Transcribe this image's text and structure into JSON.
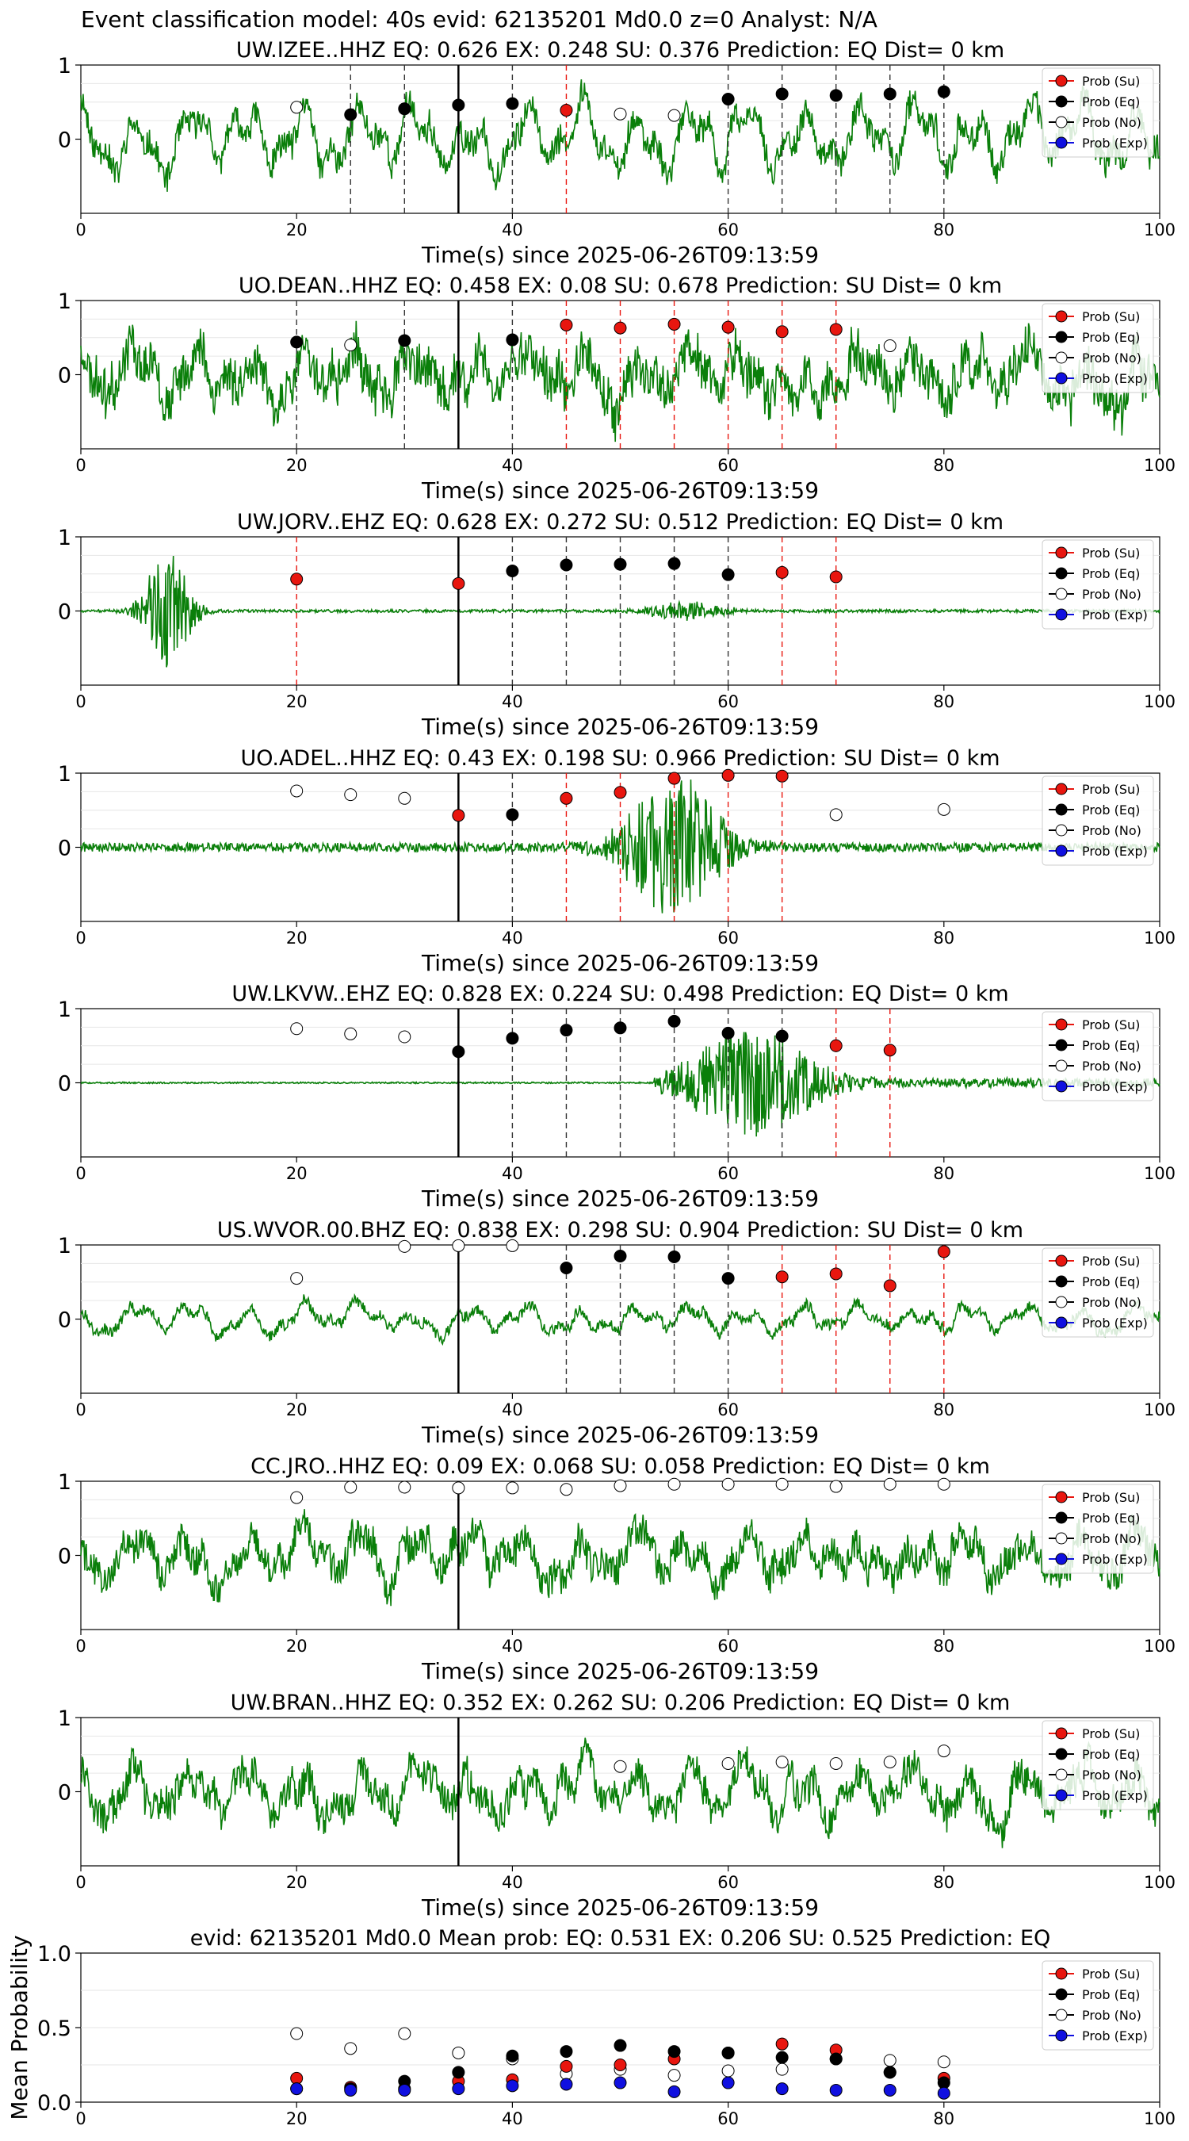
{
  "figure_title": "Event classification model: 40s evid: 62135201 Md0.0 z=0 Analyst: N/A",
  "legend_labels": [
    "Prob (Su)",
    "Prob (Eq)",
    "Prob (No)",
    "Prob (Exp)"
  ],
  "colors": {
    "su": "#e8160f",
    "eq": "#000000",
    "no": "#ffffff",
    "exp": "#1010e0",
    "trace": "#0a7f0a",
    "su_line": "#e8160f",
    "eq_line": "#333333"
  },
  "chart_data": [
    {
      "type": "line",
      "title": "UW.IZEE..HHZ   EQ: 0.626  EX: 0.248  SU: 0.376   Prediction: EQ    Dist= 0 km",
      "xlabel": "Time(s) since 2025-06-26T09:13:59",
      "xlim": [
        0,
        100
      ],
      "xticks": [
        0,
        20,
        40,
        60,
        80,
        100
      ],
      "yticks": [
        0,
        1
      ],
      "trace": {
        "seed": 11,
        "style": "wave",
        "amp": 0.55,
        "noise": 0.18
      },
      "pick_time": 35,
      "dashed_lines": [
        {
          "x": 25,
          "cls": "eq"
        },
        {
          "x": 30,
          "cls": "eq"
        },
        {
          "x": 40,
          "cls": "eq"
        },
        {
          "x": 45,
          "cls": "su"
        },
        {
          "x": 60,
          "cls": "eq"
        },
        {
          "x": 65,
          "cls": "eq"
        },
        {
          "x": 70,
          "cls": "eq"
        },
        {
          "x": 75,
          "cls": "eq"
        },
        {
          "x": 80,
          "cls": "eq"
        }
      ],
      "points": [
        {
          "x": 20,
          "y": 0.43,
          "cls": "no"
        },
        {
          "x": 25,
          "y": 0.33,
          "cls": "eq"
        },
        {
          "x": 30,
          "y": 0.41,
          "cls": "eq"
        },
        {
          "x": 35,
          "y": 0.46,
          "cls": "eq"
        },
        {
          "x": 40,
          "y": 0.48,
          "cls": "eq"
        },
        {
          "x": 45,
          "y": 0.39,
          "cls": "su"
        },
        {
          "x": 50,
          "y": 0.34,
          "cls": "no"
        },
        {
          "x": 55,
          "y": 0.32,
          "cls": "no"
        },
        {
          "x": 60,
          "y": 0.54,
          "cls": "eq"
        },
        {
          "x": 65,
          "y": 0.61,
          "cls": "eq"
        },
        {
          "x": 70,
          "y": 0.59,
          "cls": "eq"
        },
        {
          "x": 75,
          "y": 0.61,
          "cls": "eq"
        },
        {
          "x": 80,
          "y": 0.64,
          "cls": "eq"
        }
      ]
    },
    {
      "type": "line",
      "title": "UO.DEAN..HHZ   EQ: 0.458  EX: 0.08  SU: 0.678   Prediction: SU    Dist= 0 km",
      "xlabel": "Time(s) since 2025-06-26T09:13:59",
      "xlim": [
        0,
        100
      ],
      "xticks": [
        0,
        20,
        40,
        60,
        80,
        100
      ],
      "yticks": [
        0,
        1
      ],
      "trace": {
        "seed": 23,
        "style": "noisy",
        "amp": 0.35,
        "noise": 0.3
      },
      "pick_time": 35,
      "dashed_lines": [
        {
          "x": 20,
          "cls": "eq"
        },
        {
          "x": 30,
          "cls": "eq"
        },
        {
          "x": 40,
          "cls": "eq"
        },
        {
          "x": 45,
          "cls": "su"
        },
        {
          "x": 50,
          "cls": "su"
        },
        {
          "x": 55,
          "cls": "su"
        },
        {
          "x": 60,
          "cls": "su"
        },
        {
          "x": 65,
          "cls": "su"
        },
        {
          "x": 70,
          "cls": "su"
        }
      ],
      "points": [
        {
          "x": 20,
          "y": 0.44,
          "cls": "eq"
        },
        {
          "x": 25,
          "y": 0.4,
          "cls": "no"
        },
        {
          "x": 30,
          "y": 0.46,
          "cls": "eq"
        },
        {
          "x": 40,
          "y": 0.47,
          "cls": "eq"
        },
        {
          "x": 45,
          "y": 0.67,
          "cls": "su"
        },
        {
          "x": 50,
          "y": 0.63,
          "cls": "su"
        },
        {
          "x": 55,
          "y": 0.68,
          "cls": "su"
        },
        {
          "x": 60,
          "y": 0.64,
          "cls": "su"
        },
        {
          "x": 65,
          "y": 0.58,
          "cls": "su"
        },
        {
          "x": 70,
          "y": 0.61,
          "cls": "su"
        },
        {
          "x": 75,
          "y": 0.39,
          "cls": "no"
        }
      ]
    },
    {
      "type": "line",
      "title": "UW.JORV..EHZ   EQ: 0.628  EX: 0.272  SU: 0.512   Prediction: EQ    Dist= 0 km",
      "xlabel": "Time(s) since 2025-06-26T09:13:59",
      "xlim": [
        0,
        100
      ],
      "xticks": [
        0,
        20,
        40,
        60,
        80,
        100
      ],
      "yticks": [
        0,
        1
      ],
      "trace": {
        "seed": 37,
        "style": "early_burst",
        "amp": 0.1,
        "noise": 0.02
      },
      "pick_time": 35,
      "dashed_lines": [
        {
          "x": 20,
          "cls": "su"
        },
        {
          "x": 40,
          "cls": "eq"
        },
        {
          "x": 45,
          "cls": "eq"
        },
        {
          "x": 50,
          "cls": "eq"
        },
        {
          "x": 55,
          "cls": "eq"
        },
        {
          "x": 60,
          "cls": "eq"
        },
        {
          "x": 65,
          "cls": "su"
        },
        {
          "x": 70,
          "cls": "su"
        }
      ],
      "points": [
        {
          "x": 20,
          "y": 0.43,
          "cls": "su"
        },
        {
          "x": 35,
          "y": 0.37,
          "cls": "su"
        },
        {
          "x": 40,
          "y": 0.54,
          "cls": "eq"
        },
        {
          "x": 45,
          "y": 0.62,
          "cls": "eq"
        },
        {
          "x": 50,
          "y": 0.63,
          "cls": "eq"
        },
        {
          "x": 55,
          "y": 0.64,
          "cls": "eq"
        },
        {
          "x": 60,
          "y": 0.49,
          "cls": "eq"
        },
        {
          "x": 65,
          "y": 0.52,
          "cls": "su"
        },
        {
          "x": 70,
          "y": 0.46,
          "cls": "su"
        }
      ]
    },
    {
      "type": "line",
      "title": "UO.ADEL..HHZ   EQ: 0.43  EX: 0.198  SU: 0.966   Prediction: SU    Dist= 0 km",
      "xlabel": "Time(s) since 2025-06-26T09:13:59",
      "xlim": [
        0,
        100
      ],
      "xticks": [
        0,
        20,
        40,
        60,
        80,
        100
      ],
      "yticks": [
        0,
        1
      ],
      "trace": {
        "seed": 41,
        "style": "mid_burst",
        "amp": 0.08,
        "noise": 0.06
      },
      "pick_time": 35,
      "dashed_lines": [
        {
          "x": 40,
          "cls": "eq"
        },
        {
          "x": 45,
          "cls": "su"
        },
        {
          "x": 50,
          "cls": "su"
        },
        {
          "x": 55,
          "cls": "su"
        },
        {
          "x": 60,
          "cls": "su"
        },
        {
          "x": 65,
          "cls": "su"
        }
      ],
      "points": [
        {
          "x": 20,
          "y": 0.76,
          "cls": "no"
        },
        {
          "x": 25,
          "y": 0.71,
          "cls": "no"
        },
        {
          "x": 30,
          "y": 0.66,
          "cls": "no"
        },
        {
          "x": 35,
          "y": 0.43,
          "cls": "su"
        },
        {
          "x": 40,
          "y": 0.44,
          "cls": "eq"
        },
        {
          "x": 45,
          "y": 0.66,
          "cls": "su"
        },
        {
          "x": 50,
          "y": 0.74,
          "cls": "su"
        },
        {
          "x": 55,
          "y": 0.93,
          "cls": "su"
        },
        {
          "x": 60,
          "y": 0.97,
          "cls": "su"
        },
        {
          "x": 65,
          "y": 0.96,
          "cls": "su"
        },
        {
          "x": 70,
          "y": 0.44,
          "cls": "no"
        },
        {
          "x": 80,
          "y": 0.51,
          "cls": "no"
        }
      ]
    },
    {
      "type": "line",
      "title": "UW.LKVW..EHZ   EQ: 0.828  EX: 0.224  SU: 0.498   Prediction: EQ    Dist= 0 km",
      "xlabel": "Time(s) since 2025-06-26T09:13:59",
      "xlim": [
        0,
        100
      ],
      "xticks": [
        0,
        20,
        40,
        60,
        80,
        100
      ],
      "yticks": [
        0,
        1
      ],
      "trace": {
        "seed": 53,
        "style": "late_burst",
        "amp": 0.02,
        "noise": 0.01
      },
      "pick_time": 35,
      "dashed_lines": [
        {
          "x": 40,
          "cls": "eq"
        },
        {
          "x": 45,
          "cls": "eq"
        },
        {
          "x": 50,
          "cls": "eq"
        },
        {
          "x": 55,
          "cls": "eq"
        },
        {
          "x": 60,
          "cls": "eq"
        },
        {
          "x": 65,
          "cls": "eq"
        },
        {
          "x": 70,
          "cls": "su"
        },
        {
          "x": 75,
          "cls": "su"
        }
      ],
      "points": [
        {
          "x": 20,
          "y": 0.73,
          "cls": "no"
        },
        {
          "x": 25,
          "y": 0.66,
          "cls": "no"
        },
        {
          "x": 30,
          "y": 0.62,
          "cls": "no"
        },
        {
          "x": 35,
          "y": 0.42,
          "cls": "eq"
        },
        {
          "x": 40,
          "y": 0.6,
          "cls": "eq"
        },
        {
          "x": 45,
          "y": 0.71,
          "cls": "eq"
        },
        {
          "x": 50,
          "y": 0.74,
          "cls": "eq"
        },
        {
          "x": 55,
          "y": 0.83,
          "cls": "eq"
        },
        {
          "x": 60,
          "y": 0.67,
          "cls": "eq"
        },
        {
          "x": 65,
          "y": 0.63,
          "cls": "eq"
        },
        {
          "x": 70,
          "y": 0.5,
          "cls": "su"
        },
        {
          "x": 75,
          "y": 0.44,
          "cls": "su"
        }
      ]
    },
    {
      "type": "line",
      "title": "US.WVOR.00.BHZ   EQ: 0.838  EX: 0.298  SU: 0.904   Prediction: SU    Dist= 0 km",
      "xlabel": "Time(s) since 2025-06-26T09:13:59",
      "xlim": [
        0,
        100
      ],
      "xticks": [
        0,
        20,
        40,
        60,
        80,
        100
      ],
      "yticks": [
        0,
        1
      ],
      "trace": {
        "seed": 67,
        "style": "wave",
        "amp": 0.22,
        "noise": 0.07
      },
      "pick_time": 35,
      "dashed_lines": [
        {
          "x": 45,
          "cls": "eq"
        },
        {
          "x": 50,
          "cls": "eq"
        },
        {
          "x": 55,
          "cls": "eq"
        },
        {
          "x": 60,
          "cls": "eq"
        },
        {
          "x": 65,
          "cls": "su"
        },
        {
          "x": 70,
          "cls": "su"
        },
        {
          "x": 75,
          "cls": "su"
        },
        {
          "x": 80,
          "cls": "su"
        }
      ],
      "points": [
        {
          "x": 20,
          "y": 0.55,
          "cls": "no"
        },
        {
          "x": 30,
          "y": 0.98,
          "cls": "no"
        },
        {
          "x": 35,
          "y": 0.99,
          "cls": "no"
        },
        {
          "x": 40,
          "y": 0.99,
          "cls": "no"
        },
        {
          "x": 45,
          "y": 0.69,
          "cls": "eq"
        },
        {
          "x": 50,
          "y": 0.85,
          "cls": "eq"
        },
        {
          "x": 55,
          "y": 0.84,
          "cls": "eq"
        },
        {
          "x": 60,
          "y": 0.55,
          "cls": "eq"
        },
        {
          "x": 65,
          "y": 0.57,
          "cls": "su"
        },
        {
          "x": 70,
          "y": 0.61,
          "cls": "su"
        },
        {
          "x": 75,
          "y": 0.45,
          "cls": "su"
        },
        {
          "x": 80,
          "y": 0.91,
          "cls": "su"
        }
      ]
    },
    {
      "type": "line",
      "title": "CC.JRO..HHZ   EQ: 0.09  EX: 0.068  SU: 0.058   Prediction: EQ    Dist= 0 km",
      "xlabel": "Time(s) since 2025-06-26T09:13:59",
      "xlim": [
        0,
        100
      ],
      "xticks": [
        0,
        20,
        40,
        60,
        80,
        100
      ],
      "yticks": [
        0,
        1
      ],
      "trace": {
        "seed": 79,
        "style": "noisy",
        "amp": 0.35,
        "noise": 0.22
      },
      "pick_time": 35,
      "dashed_lines": [],
      "points": [
        {
          "x": 20,
          "y": 0.78,
          "cls": "no"
        },
        {
          "x": 25,
          "y": 0.92,
          "cls": "no"
        },
        {
          "x": 30,
          "y": 0.92,
          "cls": "no"
        },
        {
          "x": 35,
          "y": 0.91,
          "cls": "no"
        },
        {
          "x": 40,
          "y": 0.91,
          "cls": "no"
        },
        {
          "x": 45,
          "y": 0.89,
          "cls": "no"
        },
        {
          "x": 50,
          "y": 0.94,
          "cls": "no"
        },
        {
          "x": 55,
          "y": 0.96,
          "cls": "no"
        },
        {
          "x": 60,
          "y": 0.96,
          "cls": "no"
        },
        {
          "x": 65,
          "y": 0.96,
          "cls": "no"
        },
        {
          "x": 70,
          "y": 0.93,
          "cls": "no"
        },
        {
          "x": 75,
          "y": 0.96,
          "cls": "no"
        },
        {
          "x": 80,
          "y": 0.96,
          "cls": "no"
        }
      ]
    },
    {
      "type": "line",
      "title": "UW.BRAN..HHZ   EQ: 0.352  EX: 0.262  SU: 0.206   Prediction: EQ    Dist= 0 km",
      "xlabel": "Time(s) since 2025-06-26T09:13:59",
      "xlim": [
        0,
        100
      ],
      "xticks": [
        0,
        20,
        40,
        60,
        80,
        100
      ],
      "yticks": [
        0,
        1
      ],
      "trace": {
        "seed": 97,
        "style": "noisy",
        "amp": 0.4,
        "noise": 0.22
      },
      "pick_time": 35,
      "dashed_lines": [],
      "points": [
        {
          "x": 50,
          "y": 0.34,
          "cls": "no"
        },
        {
          "x": 60,
          "y": 0.38,
          "cls": "no"
        },
        {
          "x": 65,
          "y": 0.4,
          "cls": "no"
        },
        {
          "x": 70,
          "y": 0.38,
          "cls": "no"
        },
        {
          "x": 75,
          "y": 0.4,
          "cls": "no"
        },
        {
          "x": 80,
          "y": 0.55,
          "cls": "no"
        }
      ]
    },
    {
      "type": "scatter",
      "title": "evid: 62135201  Md0.0    Mean prob:    EQ: 0.531  EX: 0.206  SU: 0.525   Prediction: EQ",
      "ylabel": "Mean Probability",
      "xlim": [
        0,
        100
      ],
      "ylim": [
        0,
        1
      ],
      "xticks": [
        0,
        20,
        40,
        60,
        80,
        100
      ],
      "yticks": [
        0.0,
        0.5,
        1.0
      ],
      "series": [
        {
          "cls": "no",
          "x": [
            20,
            25,
            30,
            35,
            40,
            45,
            50,
            55,
            60,
            65,
            70,
            75,
            80
          ],
          "values": [
            0.46,
            0.36,
            0.46,
            0.33,
            0.29,
            0.19,
            0.22,
            0.18,
            0.21,
            0.22,
            0.29,
            0.28,
            0.27
          ]
        },
        {
          "cls": "su",
          "x": [
            20,
            25,
            30,
            35,
            40,
            45,
            50,
            55,
            60,
            65,
            70,
            75,
            80
          ],
          "values": [
            0.16,
            0.1,
            0.09,
            0.14,
            0.15,
            0.24,
            0.25,
            0.29,
            0.33,
            0.39,
            0.35,
            0.2,
            0.16
          ]
        },
        {
          "cls": "eq",
          "x": [
            20,
            25,
            30,
            35,
            40,
            45,
            50,
            55,
            60,
            65,
            70,
            75,
            80
          ],
          "values": [
            0.09,
            0.09,
            0.14,
            0.2,
            0.31,
            0.34,
            0.38,
            0.34,
            0.33,
            0.3,
            0.29,
            0.2,
            0.13
          ]
        },
        {
          "cls": "exp",
          "x": [
            20,
            25,
            30,
            35,
            40,
            45,
            50,
            55,
            60,
            65,
            70,
            75,
            80
          ],
          "values": [
            0.09,
            0.08,
            0.08,
            0.09,
            0.11,
            0.12,
            0.13,
            0.07,
            0.13,
            0.09,
            0.08,
            0.08,
            0.06
          ]
        }
      ]
    }
  ]
}
